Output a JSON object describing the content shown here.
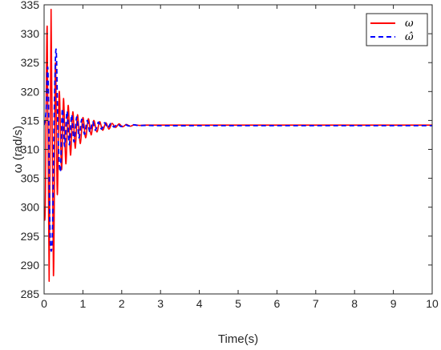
{
  "chart_data": {
    "type": "line",
    "xlabel": "Time(s)",
    "ylabel": "ω (rad/s)",
    "xlim": [
      0,
      10
    ],
    "ylim": [
      285,
      335
    ],
    "xticks": [
      0,
      1,
      2,
      3,
      4,
      5,
      6,
      7,
      8,
      9,
      10
    ],
    "yticks": [
      285,
      290,
      295,
      300,
      305,
      310,
      315,
      320,
      325,
      330,
      335
    ],
    "legend_position": "top-right",
    "grid": false,
    "series": [
      {
        "name": "ω",
        "color": "#ff0000",
        "style": "solid",
        "x": [
          0,
          0.03,
          0.08,
          0.13,
          0.18,
          0.24,
          0.29,
          0.34,
          0.39,
          0.45,
          0.5,
          0.56,
          0.62,
          0.68,
          0.74,
          0.8,
          0.86,
          0.93,
          1.0,
          1.07,
          1.14,
          1.21,
          1.28,
          1.36,
          1.43,
          1.51,
          1.59,
          1.67,
          1.75,
          1.84,
          1.93,
          2.02,
          2.12,
          2.22,
          2.32,
          2.45,
          2.6,
          3.0,
          4.0,
          5.0,
          6.0,
          7.0,
          8.0,
          9.0,
          10.0
        ],
        "y": [
          299.7,
          300.2,
          331.2,
          287.2,
          334.2,
          288.2,
          324.8,
          302.2,
          320.0,
          306.5,
          318.8,
          307.5,
          317.6,
          309.0,
          316.5,
          310.2,
          316.0,
          311.0,
          315.5,
          312.0,
          315.3,
          312.5,
          315.0,
          313.0,
          314.8,
          313.3,
          314.6,
          313.5,
          314.5,
          313.8,
          314.4,
          313.9,
          314.3,
          314.0,
          314.25,
          314.15,
          314.2,
          314.2,
          314.2,
          314.2,
          314.2,
          314.2,
          314.2,
          314.2,
          314.2
        ]
      },
      {
        "name": "ω̂",
        "color": "#0000ff",
        "style": "dashed",
        "x": [
          0,
          0.05,
          0.1,
          0.15,
          0.21,
          0.26,
          0.31,
          0.36,
          0.42,
          0.47,
          0.53,
          0.59,
          0.65,
          0.71,
          0.77,
          0.84,
          0.9,
          0.97,
          1.04,
          1.11,
          1.18,
          1.25,
          1.32,
          1.4,
          1.48,
          1.56,
          1.64,
          1.72,
          1.8,
          1.89,
          1.98,
          2.08,
          2.18,
          2.3,
          2.45,
          2.6,
          3.0,
          4.0,
          5.0,
          6.0,
          7.0,
          8.0,
          9.0,
          10.0
        ],
        "y": [
          314.2,
          316.5,
          323.5,
          296.5,
          294.5,
          316.0,
          327.3,
          312.5,
          306.2,
          317.0,
          310.5,
          316.6,
          310.8,
          316.0,
          311.3,
          315.6,
          312.0,
          315.2,
          312.6,
          315.0,
          313.0,
          314.8,
          313.3,
          314.7,
          313.5,
          314.6,
          313.7,
          314.5,
          313.85,
          314.4,
          313.95,
          314.3,
          314.05,
          314.25,
          314.1,
          314.15,
          314.1,
          314.1,
          314.1,
          314.1,
          314.1,
          314.1,
          314.1,
          314.1
        ]
      }
    ]
  }
}
